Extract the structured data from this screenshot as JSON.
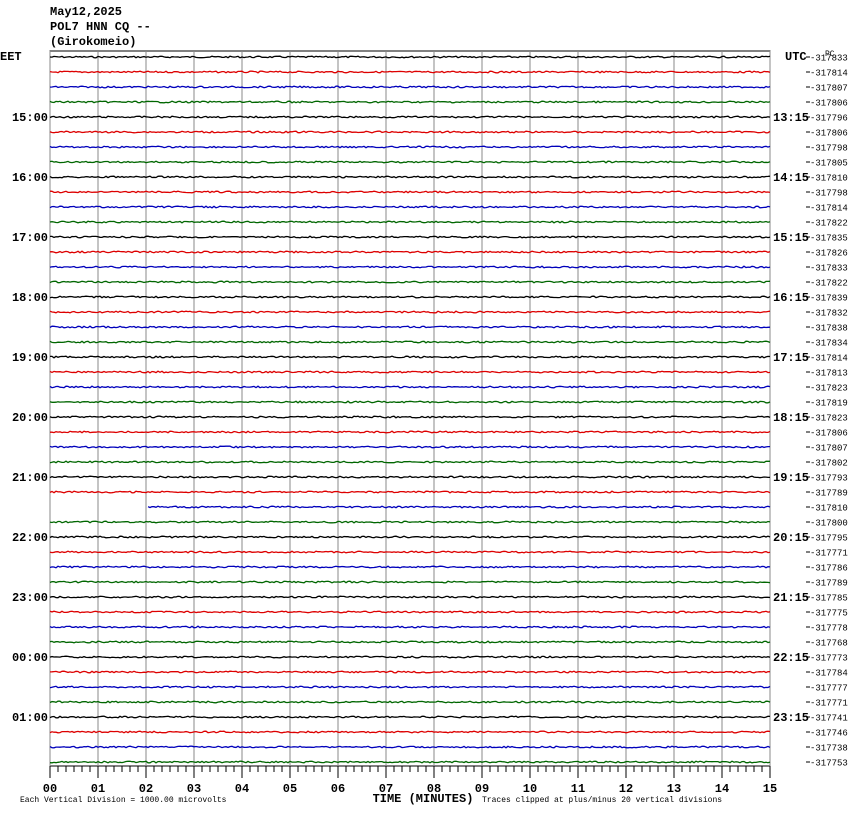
{
  "header": {
    "date": "May12,2025",
    "station": "POL7 HNN CQ --",
    "location": "(Girokomeio)"
  },
  "corner": "PC",
  "left": {
    "heading": "EET",
    "hours": [
      "15:00",
      "16:00",
      "17:00",
      "18:00",
      "19:00",
      "20:00",
      "21:00",
      "22:00",
      "23:00",
      "00:00",
      "01:00"
    ]
  },
  "right": {
    "heading": "UTC",
    "hours": [
      "13:15",
      "14:15",
      "15:15",
      "16:15",
      "17:15",
      "18:15",
      "19:15",
      "20:15",
      "21:15",
      "22:15",
      "23:15"
    ]
  },
  "trace_offsets": [
    -317833,
    -317814,
    -317807,
    -317806,
    -317796,
    -317806,
    -317798,
    -317805,
    -317810,
    -317798,
    -317814,
    -317822,
    -317835,
    -317826,
    -317833,
    -317822,
    -317839,
    -317832,
    -317838,
    -317834,
    -317814,
    -317813,
    -317823,
    -317819,
    -317823,
    -317806,
    -317807,
    -317802,
    -317793,
    -317789,
    -317810,
    -317800,
    -317795,
    -317771,
    -317786,
    -317789,
    -317785,
    -317775,
    -317778,
    -317768,
    -317773,
    -317784,
    -317777,
    -317771,
    -317741,
    -317746,
    -317738,
    -317753
  ],
  "x_axis": {
    "labels": [
      "00",
      "01",
      "02",
      "03",
      "04",
      "05",
      "06",
      "07",
      "08",
      "09",
      "10",
      "11",
      "12",
      "13",
      "14",
      "15"
    ],
    "title": "TIME (MINUTES)"
  },
  "footer": {
    "scale": "Each Vertical Division = 1000.00 microvolts",
    "clip": "Traces clipped at plus/minus 20 vertical divisions"
  }
}
